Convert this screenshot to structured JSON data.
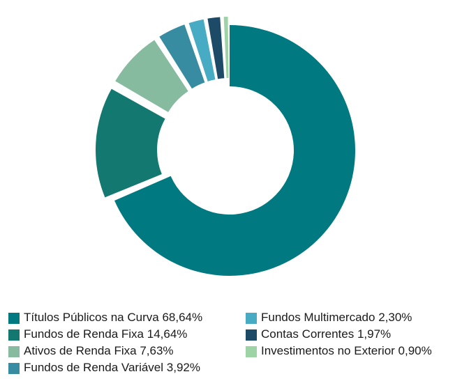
{
  "chart_data": {
    "type": "pie",
    "categories": [
      "Títulos Públicos na Curva",
      "Fundos de Renda Fixa",
      "Ativos de Renda Fixa",
      "Fundos de Renda Variável",
      "Fundos Multimercado",
      "Contas Correntes",
      "Investimentos no Exterior"
    ],
    "values": [
      68.64,
      14.64,
      7.63,
      3.92,
      2.3,
      1.97,
      0.9
    ],
    "value_labels": [
      "68,64%",
      "14,64%",
      "7,63%",
      "3,92%",
      "2,30%",
      "1,97%",
      "0,90%"
    ],
    "colors": [
      "#007a80",
      "#13786f",
      "#86bb9f",
      "#388ca2",
      "#47abc4",
      "#1d4a66",
      "#9dd3a5"
    ]
  }
}
